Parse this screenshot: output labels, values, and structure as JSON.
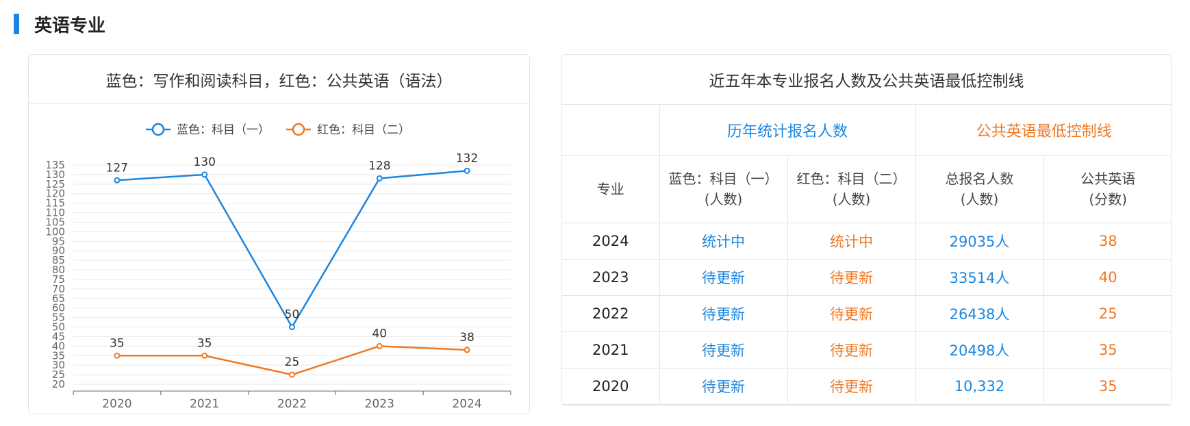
{
  "section": {
    "title": "英语专业"
  },
  "chart_card": {
    "title": "蓝色：写作和阅读科目，红色：公共英语（语法）"
  },
  "chart_data": {
    "type": "line",
    "title": "蓝色：写作和阅读科目，红色：公共英语（语法）",
    "categories": [
      "2020",
      "2021",
      "2022",
      "2023",
      "2024"
    ],
    "series": [
      {
        "name": "蓝色：科目（一）",
        "values": [
          127,
          130,
          50,
          128,
          132
        ],
        "color": "#1a86e0"
      },
      {
        "name": "红色：科目（二）",
        "values": [
          35,
          35,
          25,
          40,
          38
        ],
        "color": "#f07820"
      }
    ],
    "yticks": [
      20,
      25,
      30,
      35,
      40,
      45,
      50,
      55,
      60,
      65,
      70,
      75,
      80,
      85,
      90,
      95,
      100,
      105,
      110,
      115,
      120,
      125,
      130,
      135
    ],
    "ylim": [
      20,
      135
    ],
    "grid": true,
    "legend_position": "top-center"
  },
  "table_card": {
    "title": "近五年本专业报名人数及公共英语最低控制线",
    "group_headers": [
      "历年统计报名人数",
      "公共英语最低控制线"
    ],
    "columns": [
      {
        "line1": "专业",
        "line2": ""
      },
      {
        "line1": "蓝色：科目（一）",
        "line2": "(人数)"
      },
      {
        "line1": "红色：科目（二）",
        "line2": "(人数)"
      },
      {
        "line1": "总报名人数",
        "line2": "(人数)"
      },
      {
        "line1": "公共英语",
        "line2": "(分数)"
      }
    ],
    "rows": [
      {
        "year": "2024",
        "blue": "统计中",
        "red": "统计中",
        "total": "29035人",
        "score": "38"
      },
      {
        "year": "2023",
        "blue": "待更新",
        "red": "待更新",
        "total": "33514人",
        "score": "40"
      },
      {
        "year": "2022",
        "blue": "待更新",
        "red": "待更新",
        "total": "26438人",
        "score": "25"
      },
      {
        "year": "2021",
        "blue": "待更新",
        "red": "待更新",
        "total": "20498人",
        "score": "35"
      },
      {
        "year": "2020",
        "blue": "待更新",
        "red": "待更新",
        "total": "10,332",
        "score": "35"
      }
    ]
  },
  "colors": {
    "accent": "#1a86e0",
    "orange": "#f07820"
  }
}
